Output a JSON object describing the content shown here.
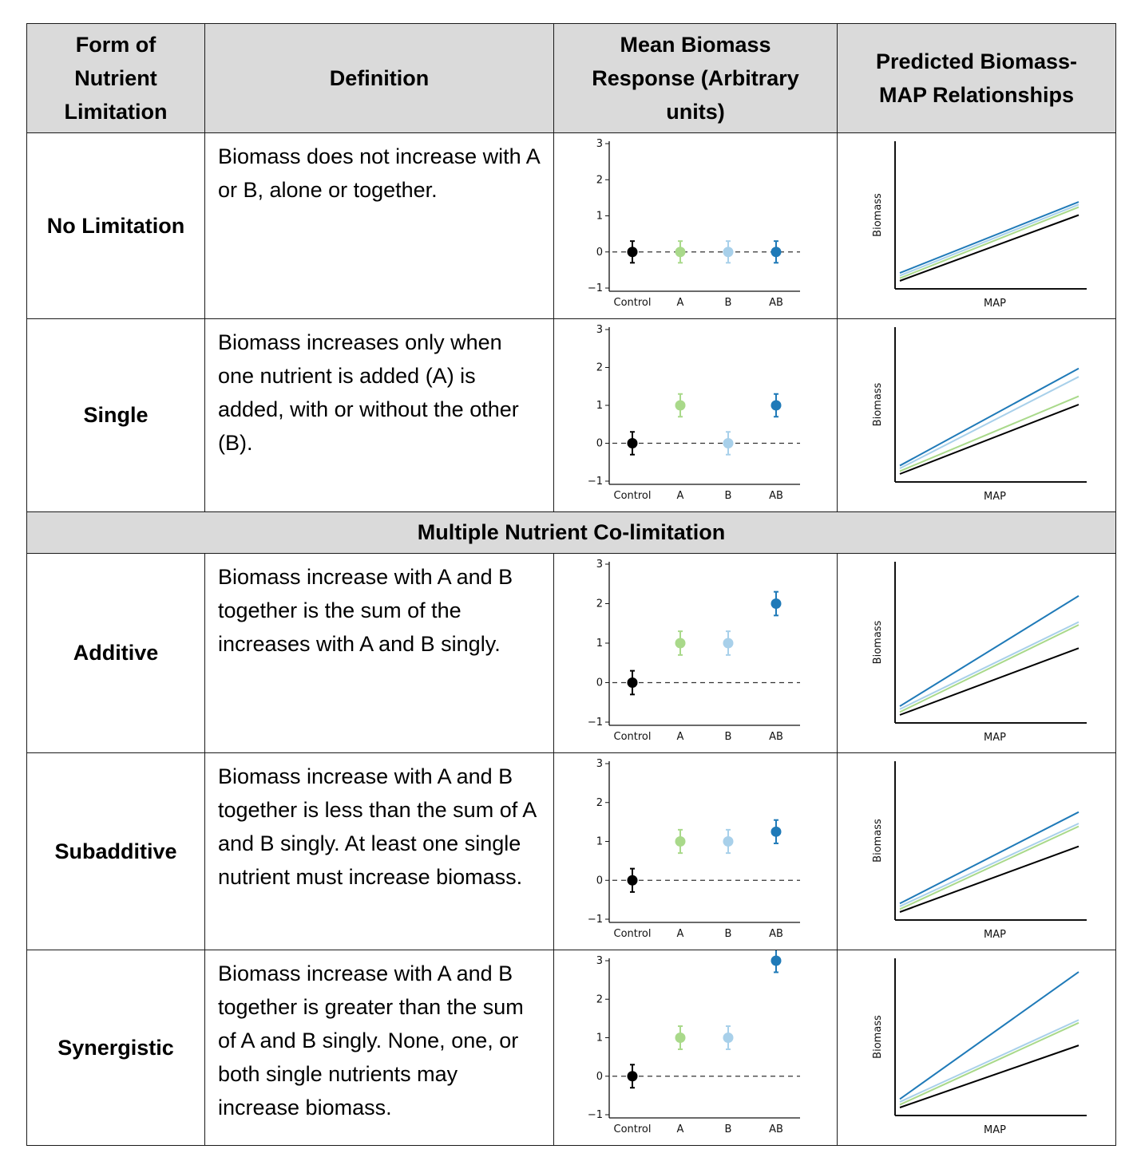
{
  "headers": {
    "form": "Form of Nutrient Limitation",
    "definition": "Definition",
    "mean": "Mean Biomass Response (Arbitrary units)",
    "predicted": "Predicted Biomass-MAP Relationships"
  },
  "section_label": "Multiple Nutrient Co-limitation",
  "rows": [
    {
      "form": "No Limitation",
      "definition": "Biomass does not increase with A or B, alone or together."
    },
    {
      "form": "Single",
      "definition": "Biomass increases only when one nutrient is added (A) is added, with or without the other (B)."
    },
    {
      "form": "Additive",
      "definition": "Biomass increase with A and B together is the sum of the increases with A and B singly."
    },
    {
      "form": "Subadditive",
      "definition": "Biomass increase with A and B together is less than the sum of A and B singly. At least one single nutrient must increase biomass."
    },
    {
      "form": "Synergistic",
      "definition": "Biomass increase with A and B together is greater than the sum of A and B singly. None, one, or both single nutrients may increase biomass."
    }
  ],
  "colors": {
    "Control": "#000000",
    "A": "#a9d98a",
    "B": "#a8d0ea",
    "AB": "#1f7ab8"
  },
  "chart_data": [
    {
      "type": "scatter",
      "panel": "No Limitation",
      "categories": [
        "Control",
        "A",
        "B",
        "AB"
      ],
      "values": [
        0,
        0,
        0,
        0
      ],
      "error": [
        0.3,
        0.3,
        0.3,
        0.3
      ],
      "ylim": [
        -1,
        3
      ],
      "yticks": [
        "3",
        "2",
        "1",
        "0",
        "−1"
      ],
      "reference_line": 0
    },
    {
      "type": "line",
      "panel": "No Limitation",
      "xlabel": "MAP",
      "ylabel": "Biomass",
      "series": [
        {
          "values": [
            0.0,
            0.5
          ]
        },
        {
          "values": [
            0.02,
            0.56
          ]
        },
        {
          "values": [
            0.04,
            0.58
          ]
        },
        {
          "values": [
            0.06,
            0.6
          ]
        }
      ]
    },
    {
      "type": "scatter",
      "panel": "Single",
      "categories": [
        "Control",
        "A",
        "B",
        "AB"
      ],
      "values": [
        0,
        1,
        0,
        1
      ],
      "error": [
        0.3,
        0.3,
        0.3,
        0.3
      ],
      "ylim": [
        -1,
        3
      ],
      "yticks": [
        "3",
        "2",
        "1",
        "0",
        "−1"
      ],
      "reference_line": 0
    },
    {
      "type": "line",
      "panel": "Single",
      "xlabel": "MAP",
      "ylabel": "Biomass",
      "series": [
        {
          "values": [
            0.0,
            0.5
          ]
        },
        {
          "values": [
            0.02,
            0.56
          ]
        },
        {
          "values": [
            0.04,
            0.7
          ]
        },
        {
          "values": [
            0.06,
            0.76
          ]
        }
      ]
    },
    {
      "type": "scatter",
      "panel": "Additive",
      "categories": [
        "Control",
        "A",
        "B",
        "AB"
      ],
      "values": [
        0,
        1,
        1,
        2
      ],
      "error": [
        0.3,
        0.3,
        0.3,
        0.3
      ],
      "ylim": [
        -1,
        3
      ],
      "yticks": [
        "3",
        "2",
        "1",
        "0",
        "−1"
      ],
      "reference_line": 0
    },
    {
      "type": "line",
      "panel": "Additive",
      "xlabel": "MAP",
      "ylabel": "Biomass",
      "series": [
        {
          "values": [
            0.0,
            0.46
          ]
        },
        {
          "values": [
            0.02,
            0.62
          ]
        },
        {
          "values": [
            0.04,
            0.64
          ]
        },
        {
          "values": [
            0.06,
            0.82
          ]
        }
      ]
    },
    {
      "type": "scatter",
      "panel": "Subadditive",
      "categories": [
        "Control",
        "A",
        "B",
        "AB"
      ],
      "values": [
        0,
        1,
        1,
        1.25
      ],
      "error": [
        0.3,
        0.3,
        0.3,
        0.3
      ],
      "ylim": [
        -1,
        3
      ],
      "yticks": [
        "3",
        "2",
        "1",
        "0",
        "−1"
      ],
      "reference_line": 0
    },
    {
      "type": "line",
      "panel": "Subadditive",
      "xlabel": "MAP",
      "ylabel": "Biomass",
      "series": [
        {
          "values": [
            0.0,
            0.46
          ]
        },
        {
          "values": [
            0.02,
            0.6
          ]
        },
        {
          "values": [
            0.04,
            0.62
          ]
        },
        {
          "values": [
            0.06,
            0.7
          ]
        }
      ]
    },
    {
      "type": "scatter",
      "panel": "Synergistic",
      "categories": [
        "Control",
        "A",
        "B",
        "AB"
      ],
      "values": [
        0,
        1,
        1,
        3
      ],
      "error": [
        0.3,
        0.3,
        0.3,
        0.3
      ],
      "ylim": [
        -1,
        3
      ],
      "yticks": [
        "3",
        "2",
        "1",
        "0",
        "−1"
      ],
      "reference_line": 0
    },
    {
      "type": "line",
      "panel": "Synergistic",
      "xlabel": "MAP",
      "ylabel": "Biomass",
      "series": [
        {
          "values": [
            0.0,
            0.44
          ]
        },
        {
          "values": [
            0.02,
            0.6
          ]
        },
        {
          "values": [
            0.04,
            0.62
          ]
        },
        {
          "values": [
            0.06,
            0.96
          ]
        }
      ]
    }
  ]
}
